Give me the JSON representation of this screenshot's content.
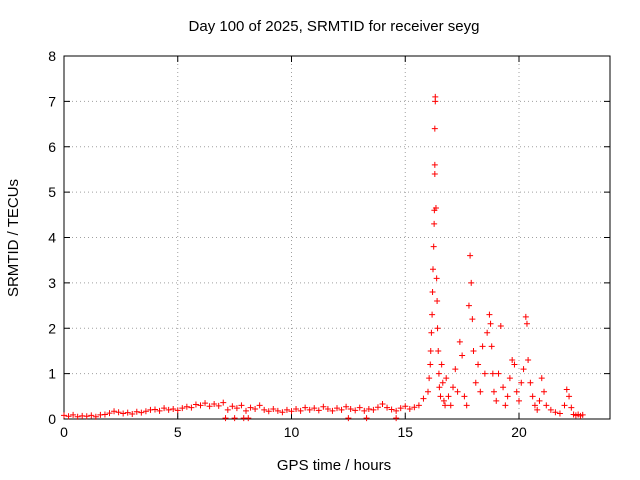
{
  "chart_data": {
    "type": "scatter",
    "title": "Day 100 of 2025, SRMTID for receiver seyg",
    "xlabel": "GPS time / hours",
    "ylabel": "SRMTID / TECUs",
    "xlim": [
      0,
      24
    ],
    "ylim": [
      0,
      8
    ],
    "xticks": [
      0,
      5,
      10,
      15,
      20
    ],
    "yticks": [
      0,
      1,
      2,
      3,
      4,
      5,
      6,
      7,
      8
    ],
    "grid": true,
    "marker": "plus",
    "color": "#ff0000",
    "series": [
      {
        "name": "SRMTID",
        "points": [
          [
            0.0,
            0.08
          ],
          [
            0.2,
            0.06
          ],
          [
            0.4,
            0.09
          ],
          [
            0.6,
            0.05
          ],
          [
            0.8,
            0.07
          ],
          [
            1.0,
            0.06
          ],
          [
            1.2,
            0.08
          ],
          [
            1.4,
            0.05
          ],
          [
            1.6,
            0.09
          ],
          [
            1.8,
            0.1
          ],
          [
            2.0,
            0.13
          ],
          [
            2.2,
            0.17
          ],
          [
            2.4,
            0.15
          ],
          [
            2.6,
            0.12
          ],
          [
            2.8,
            0.14
          ],
          [
            3.0,
            0.11
          ],
          [
            3.2,
            0.16
          ],
          [
            3.4,
            0.14
          ],
          [
            3.6,
            0.17
          ],
          [
            3.8,
            0.2
          ],
          [
            4.0,
            0.21
          ],
          [
            4.2,
            0.18
          ],
          [
            4.4,
            0.24
          ],
          [
            4.6,
            0.2
          ],
          [
            4.8,
            0.22
          ],
          [
            5.0,
            0.19
          ],
          [
            5.2,
            0.24
          ],
          [
            5.4,
            0.27
          ],
          [
            5.6,
            0.25
          ],
          [
            5.8,
            0.32
          ],
          [
            6.0,
            0.3
          ],
          [
            6.2,
            0.35
          ],
          [
            6.4,
            0.28
          ],
          [
            6.6,
            0.33
          ],
          [
            6.8,
            0.29
          ],
          [
            7.0,
            0.36
          ],
          [
            7.2,
            0.2
          ],
          [
            7.4,
            0.28
          ],
          [
            7.6,
            0.24
          ],
          [
            7.8,
            0.3
          ],
          [
            8.0,
            0.18
          ],
          [
            8.2,
            0.25
          ],
          [
            8.4,
            0.22
          ],
          [
            8.6,
            0.3
          ],
          [
            8.8,
            0.2
          ],
          [
            9.0,
            0.17
          ],
          [
            9.2,
            0.22
          ],
          [
            9.4,
            0.18
          ],
          [
            9.6,
            0.15
          ],
          [
            9.8,
            0.2
          ],
          [
            10.0,
            0.17
          ],
          [
            10.2,
            0.22
          ],
          [
            10.4,
            0.18
          ],
          [
            10.6,
            0.25
          ],
          [
            10.8,
            0.2
          ],
          [
            11.0,
            0.24
          ],
          [
            11.2,
            0.19
          ],
          [
            11.4,
            0.27
          ],
          [
            11.6,
            0.22
          ],
          [
            11.8,
            0.18
          ],
          [
            12.0,
            0.24
          ],
          [
            12.2,
            0.2
          ],
          [
            12.4,
            0.27
          ],
          [
            12.6,
            0.22
          ],
          [
            12.8,
            0.19
          ],
          [
            13.0,
            0.25
          ],
          [
            13.2,
            0.18
          ],
          [
            13.4,
            0.22
          ],
          [
            13.6,
            0.2
          ],
          [
            13.8,
            0.26
          ],
          [
            14.0,
            0.33
          ],
          [
            14.2,
            0.25
          ],
          [
            14.4,
            0.21
          ],
          [
            14.6,
            0.18
          ],
          [
            14.8,
            0.24
          ],
          [
            15.0,
            0.28
          ],
          [
            15.2,
            0.22
          ],
          [
            15.4,
            0.26
          ],
          [
            15.6,
            0.3
          ],
          [
            15.8,
            0.45
          ],
          [
            7.1,
            0.02
          ],
          [
            7.5,
            0.02
          ],
          [
            7.9,
            0.02
          ],
          [
            8.1,
            0.02
          ],
          [
            12.5,
            0.02
          ],
          [
            13.3,
            0.02
          ],
          [
            14.6,
            0.02
          ],
          [
            16.0,
            0.6
          ],
          [
            16.05,
            0.9
          ],
          [
            16.1,
            1.2
          ],
          [
            16.12,
            1.5
          ],
          [
            16.15,
            1.9
          ],
          [
            16.18,
            2.3
          ],
          [
            16.2,
            2.8
          ],
          [
            16.22,
            3.3
          ],
          [
            16.25,
            3.8
          ],
          [
            16.27,
            4.3
          ],
          [
            16.28,
            4.6
          ],
          [
            16.3,
            5.4
          ],
          [
            16.3,
            5.6
          ],
          [
            16.3,
            6.4
          ],
          [
            16.32,
            7.0
          ],
          [
            16.32,
            7.1
          ],
          [
            16.35,
            4.65
          ],
          [
            16.38,
            3.1
          ],
          [
            16.4,
            2.6
          ],
          [
            16.42,
            2.0
          ],
          [
            16.45,
            1.5
          ],
          [
            16.48,
            1.0
          ],
          [
            16.5,
            0.7
          ],
          [
            16.55,
            0.5
          ],
          [
            16.6,
            1.2
          ],
          [
            16.65,
            0.8
          ],
          [
            16.7,
            0.4
          ],
          [
            16.75,
            0.3
          ],
          [
            16.8,
            0.9
          ],
          [
            16.9,
            0.5
          ],
          [
            17.0,
            0.3
          ],
          [
            17.1,
            0.7
          ],
          [
            17.2,
            1.1
          ],
          [
            17.3,
            0.6
          ],
          [
            17.4,
            1.7
          ],
          [
            17.5,
            1.4
          ],
          [
            17.6,
            0.5
          ],
          [
            17.7,
            0.3
          ],
          [
            17.8,
            2.5
          ],
          [
            17.85,
            3.6
          ],
          [
            17.9,
            3.0
          ],
          [
            17.95,
            2.2
          ],
          [
            18.0,
            1.5
          ],
          [
            18.1,
            0.8
          ],
          [
            18.2,
            1.2
          ],
          [
            18.3,
            0.6
          ],
          [
            18.4,
            1.6
          ],
          [
            18.5,
            1.0
          ],
          [
            18.6,
            1.9
          ],
          [
            18.7,
            2.3
          ],
          [
            18.75,
            2.1
          ],
          [
            18.8,
            1.6
          ],
          [
            18.85,
            1.0
          ],
          [
            18.9,
            0.6
          ],
          [
            19.0,
            0.4
          ],
          [
            19.1,
            1.0
          ],
          [
            19.2,
            2.05
          ],
          [
            19.3,
            0.7
          ],
          [
            19.4,
            0.3
          ],
          [
            19.5,
            0.5
          ],
          [
            19.6,
            0.9
          ],
          [
            19.7,
            1.3
          ],
          [
            19.8,
            1.2
          ],
          [
            19.9,
            0.6
          ],
          [
            20.0,
            0.4
          ],
          [
            20.1,
            0.8
          ],
          [
            20.2,
            1.1
          ],
          [
            20.3,
            2.25
          ],
          [
            20.35,
            2.1
          ],
          [
            20.4,
            1.3
          ],
          [
            20.5,
            0.8
          ],
          [
            20.6,
            0.5
          ],
          [
            20.7,
            0.3
          ],
          [
            20.8,
            0.2
          ],
          [
            20.9,
            0.4
          ],
          [
            21.0,
            0.9
          ],
          [
            21.1,
            0.6
          ],
          [
            21.2,
            0.3
          ],
          [
            21.4,
            0.2
          ],
          [
            21.6,
            0.15
          ],
          [
            21.8,
            0.12
          ],
          [
            22.0,
            0.3
          ],
          [
            22.1,
            0.65
          ],
          [
            22.2,
            0.5
          ],
          [
            22.3,
            0.25
          ],
          [
            22.4,
            0.1
          ],
          [
            22.5,
            0.08
          ],
          [
            22.6,
            0.1
          ],
          [
            22.7,
            0.07
          ],
          [
            22.8,
            0.09
          ]
        ]
      }
    ]
  }
}
